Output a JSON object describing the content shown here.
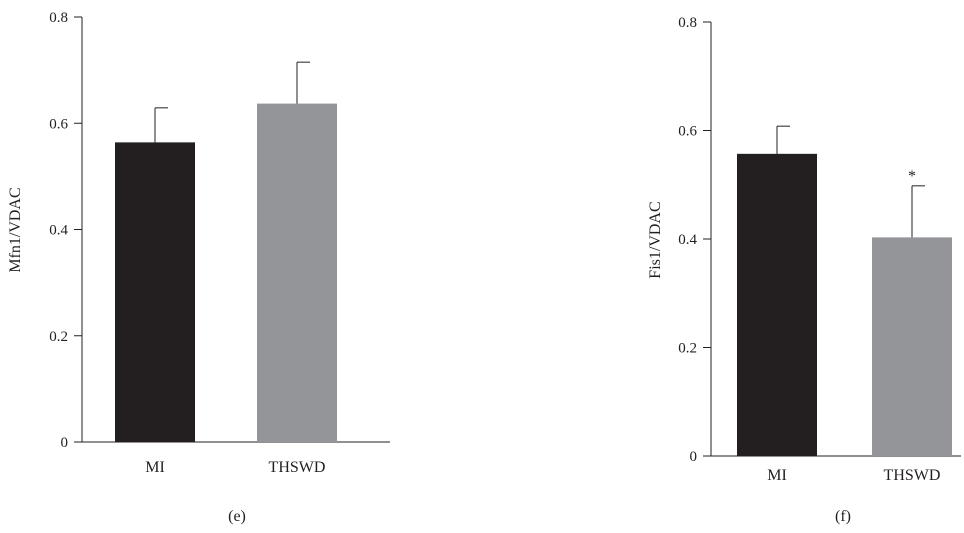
{
  "chart_data": [
    {
      "type": "bar",
      "panel_label": "(e)",
      "title": "",
      "xlabel": "",
      "ylabel": "Mfn1/VDAC",
      "ylim": [
        0,
        0.8
      ],
      "yticks": [
        0,
        0.2,
        0.4,
        0.6,
        0.8
      ],
      "ytick_labels": [
        "0",
        "0.2",
        "0.4",
        "0.6",
        "0.8"
      ],
      "categories": [
        "MI",
        "THSWD"
      ],
      "values": [
        0.564,
        0.637
      ],
      "errors": [
        0.065,
        0.078
      ],
      "colors": [
        "#231f20",
        "#939598"
      ],
      "annotations": [
        "",
        ""
      ]
    },
    {
      "type": "bar",
      "panel_label": "(f)",
      "title": "",
      "xlabel": "",
      "ylabel": "Fis1/VDAC",
      "ylim": [
        0,
        0.8
      ],
      "yticks": [
        0,
        0.2,
        0.4,
        0.6,
        0.8
      ],
      "ytick_labels": [
        "0",
        "0.2",
        "0.4",
        "0.6",
        "0.8"
      ],
      "categories": [
        "MI",
        "THSWD"
      ],
      "values": [
        0.557,
        0.403
      ],
      "errors": [
        0.051,
        0.095
      ],
      "colors": [
        "#231f20",
        "#939598"
      ],
      "annotations": [
        "",
        "*"
      ]
    }
  ]
}
